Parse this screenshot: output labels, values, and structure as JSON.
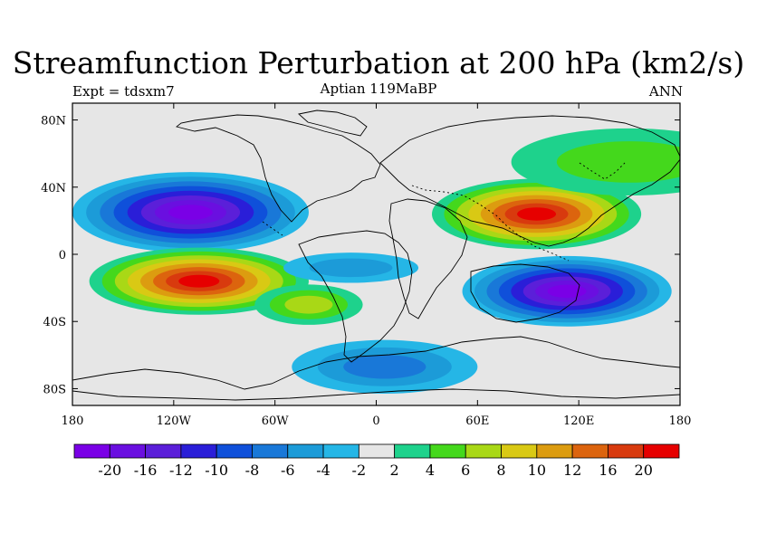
{
  "title": "Streamfunction Perturbation at 200 hPa (km2/s)",
  "left_label": "Expt = tdsxm7",
  "center_label": "Aptian   119MaBP",
  "right_label": "ANN",
  "map": {
    "projection": "cylindrical-equidistant",
    "lon_range": [
      -180,
      180
    ],
    "lat_range": [
      -90,
      90
    ],
    "background_color": "#e6e6e6",
    "x_ticks": [
      {
        "lon": -180,
        "label": "180"
      },
      {
        "lon": -120,
        "label": "120W"
      },
      {
        "lon": -60,
        "label": "60W"
      },
      {
        "lon": 0,
        "label": "0"
      },
      {
        "lon": 60,
        "label": "60E"
      },
      {
        "lon": 120,
        "label": "120E"
      },
      {
        "lon": 180,
        "label": "180"
      }
    ],
    "y_ticks": [
      {
        "lat": 80,
        "label": "80N"
      },
      {
        "lat": 40,
        "label": "40N"
      },
      {
        "lat": 0,
        "label": "0"
      },
      {
        "lat": -40,
        "label": "40S"
      },
      {
        "lat": -80,
        "label": "80S"
      }
    ],
    "anomalies": [
      {
        "name": "north-pacific-low",
        "lon": -110,
        "lat": 25,
        "peak": -22,
        "rx": 70,
        "ry": 24
      },
      {
        "name": "south-pacific-high",
        "lon": -105,
        "lat": -16,
        "peak": 22,
        "rx": 65,
        "ry": 20
      },
      {
        "name": "asia-high",
        "lon": 95,
        "lat": 24,
        "peak": 22,
        "rx": 62,
        "ry": 21
      },
      {
        "name": "indian-ocean-low",
        "lon": 113,
        "lat": -22,
        "peak": -22,
        "rx": 62,
        "ry": 21
      },
      {
        "name": "south-atlantic-low",
        "lon": -15,
        "lat": -8,
        "peak": -5,
        "rx": 40,
        "ry": 9
      },
      {
        "name": "southern-ocean-low",
        "lon": 5,
        "lat": -67,
        "peak": -7,
        "rx": 55,
        "ry": 16
      },
      {
        "name": "north-pacific-east-high",
        "lon": 150,
        "lat": 55,
        "peak": 5,
        "rx": 70,
        "ry": 20
      },
      {
        "name": "atlantic-south-high",
        "lon": -40,
        "lat": -30,
        "peak": 8,
        "rx": 32,
        "ry": 12
      }
    ]
  },
  "colorbar": {
    "colors": [
      "#7a00e6",
      "#6a0fe0",
      "#5b1fd9",
      "#2a1ed8",
      "#0f50da",
      "#1978d8",
      "#1c9bd8",
      "#25b6e6",
      "#e6e6e6",
      "#1ed28c",
      "#44d81c",
      "#a9d816",
      "#d9c914",
      "#dc9c10",
      "#dc640e",
      "#d83a0e",
      "#e60000"
    ],
    "labels": [
      "-20",
      "-16",
      "-12",
      "-10",
      "-8",
      "-6",
      "-4",
      "-2",
      "2",
      "4",
      "6",
      "8",
      "10",
      "12",
      "16",
      "20"
    ],
    "levels": [
      -20,
      -16,
      -12,
      -10,
      -8,
      -6,
      -4,
      -2,
      2,
      4,
      6,
      8,
      10,
      12,
      16,
      20
    ]
  }
}
